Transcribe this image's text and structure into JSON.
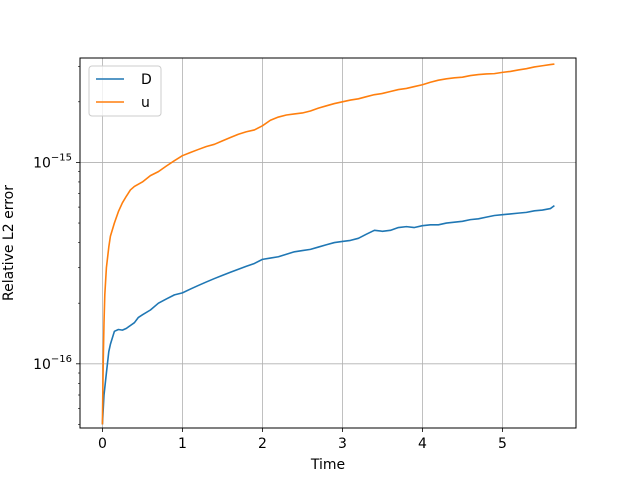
{
  "chart_data": {
    "type": "line",
    "xlabel": "Time",
    "ylabel": "Relative L2 error",
    "xlim": [
      -0.28,
      5.92
    ],
    "ylim": [
      4.8e-17,
      3.3e-15
    ],
    "yscale": "log",
    "grid": true,
    "legend_position": "top-left",
    "x_ticks": [
      0,
      1,
      2,
      3,
      4,
      5
    ],
    "x_tick_labels": [
      "0",
      "1",
      "2",
      "3",
      "4",
      "5"
    ],
    "y_ticks": [
      1e-16,
      1e-15
    ],
    "y_tick_labels": [
      {
        "base": "10",
        "exp": "−16"
      },
      {
        "base": "10",
        "exp": "−15"
      }
    ],
    "series": [
      {
        "name": "D",
        "color": "#1f77b4",
        "x": [
          0,
          0.02,
          0.05,
          0.08,
          0.1,
          0.15,
          0.2,
          0.25,
          0.3,
          0.35,
          0.4,
          0.45,
          0.5,
          0.6,
          0.7,
          0.8,
          0.9,
          1.0,
          1.1,
          1.2,
          1.3,
          1.4,
          1.5,
          1.6,
          1.7,
          1.8,
          1.9,
          2.0,
          2.1,
          2.2,
          2.3,
          2.4,
          2.5,
          2.6,
          2.7,
          2.8,
          2.9,
          3.0,
          3.1,
          3.2,
          3.3,
          3.4,
          3.5,
          3.6,
          3.7,
          3.8,
          3.9,
          4.0,
          4.1,
          4.2,
          4.3,
          4.4,
          4.5,
          4.6,
          4.7,
          4.8,
          4.9,
          5.0,
          5.1,
          5.2,
          5.3,
          5.4,
          5.5,
          5.6,
          5.65
        ],
        "values": [
          5e-17,
          7e-17,
          9e-17,
          1.15e-16,
          1.25e-16,
          1.45e-16,
          1.48e-16,
          1.47e-16,
          1.5e-16,
          1.55e-16,
          1.6e-16,
          1.7e-16,
          1.75e-16,
          1.85e-16,
          2e-16,
          2.1e-16,
          2.2e-16,
          2.25e-16,
          2.35e-16,
          2.45e-16,
          2.55e-16,
          2.65e-16,
          2.75e-16,
          2.85e-16,
          2.95e-16,
          3.05e-16,
          3.15e-16,
          3.3e-16,
          3.35e-16,
          3.4e-16,
          3.5e-16,
          3.6e-16,
          3.65e-16,
          3.7e-16,
          3.8e-16,
          3.9e-16,
          4e-16,
          4.05e-16,
          4.1e-16,
          4.2e-16,
          4.4e-16,
          4.6e-16,
          4.55e-16,
          4.6e-16,
          4.75e-16,
          4.8e-16,
          4.75e-16,
          4.85e-16,
          4.9e-16,
          4.9e-16,
          5e-16,
          5.05e-16,
          5.1e-16,
          5.2e-16,
          5.25e-16,
          5.35e-16,
          5.45e-16,
          5.5e-16,
          5.55e-16,
          5.6e-16,
          5.65e-16,
          5.75e-16,
          5.8e-16,
          5.9e-16,
          6.1e-16
        ]
      },
      {
        "name": "u",
        "color": "#ff7f0e",
        "x": [
          0,
          0.01,
          0.02,
          0.03,
          0.05,
          0.08,
          0.1,
          0.15,
          0.2,
          0.25,
          0.3,
          0.35,
          0.4,
          0.5,
          0.6,
          0.7,
          0.8,
          0.9,
          1.0,
          1.1,
          1.2,
          1.3,
          1.4,
          1.5,
          1.6,
          1.7,
          1.8,
          1.9,
          2.0,
          2.1,
          2.2,
          2.3,
          2.4,
          2.5,
          2.6,
          2.7,
          2.8,
          2.9,
          3.0,
          3.1,
          3.2,
          3.3,
          3.4,
          3.5,
          3.6,
          3.7,
          3.8,
          3.9,
          4.0,
          4.1,
          4.2,
          4.3,
          4.4,
          4.5,
          4.6,
          4.7,
          4.8,
          4.9,
          5.0,
          5.1,
          5.2,
          5.3,
          5.4,
          5.5,
          5.6,
          5.65
        ],
        "values": [
          5e-17,
          1e-16,
          1.6e-16,
          2.2e-16,
          3e-16,
          3.8e-16,
          4.3e-16,
          5e-16,
          5.7e-16,
          6.3e-16,
          6.8e-16,
          7.3e-16,
          7.6e-16,
          8e-16,
          8.6e-16,
          9e-16,
          9.6e-16,
          1.02e-15,
          1.08e-15,
          1.12e-15,
          1.16e-15,
          1.2e-15,
          1.23e-15,
          1.28e-15,
          1.33e-15,
          1.38e-15,
          1.42e-15,
          1.45e-15,
          1.52e-15,
          1.62e-15,
          1.68e-15,
          1.72e-15,
          1.74e-15,
          1.76e-15,
          1.8e-15,
          1.86e-15,
          1.91e-15,
          1.96e-15,
          2e-15,
          2.04e-15,
          2.07e-15,
          2.12e-15,
          2.17e-15,
          2.2e-15,
          2.25e-15,
          2.3e-15,
          2.33e-15,
          2.38e-15,
          2.43e-15,
          2.5e-15,
          2.56e-15,
          2.6e-15,
          2.63e-15,
          2.65e-15,
          2.7e-15,
          2.73e-15,
          2.75e-15,
          2.76e-15,
          2.8e-15,
          2.83e-15,
          2.88e-15,
          2.92e-15,
          2.98e-15,
          3.02e-15,
          3.06e-15,
          3.08e-15
        ]
      }
    ]
  }
}
